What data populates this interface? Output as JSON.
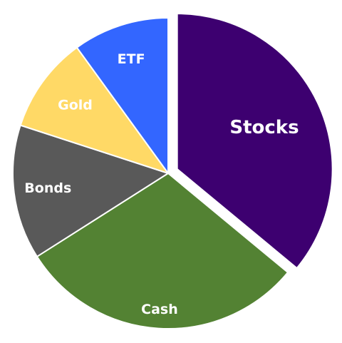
{
  "chart_data": {
    "type": "pie",
    "title": "",
    "start_angle_deg": 0,
    "direction": "clockwise",
    "exploded_slice": "Stocks",
    "slices": [
      {
        "label": "Stocks",
        "value": 36,
        "color": "#3d0070"
      },
      {
        "label": "Cash",
        "value": 30,
        "color": "#538233"
      },
      {
        "label": "Bonds",
        "value": 14,
        "color": "#595959"
      },
      {
        "label": "Gold",
        "value": 10,
        "color": "#ffd966"
      },
      {
        "label": "ETF",
        "value": 10,
        "color": "#3366ff"
      }
    ]
  }
}
